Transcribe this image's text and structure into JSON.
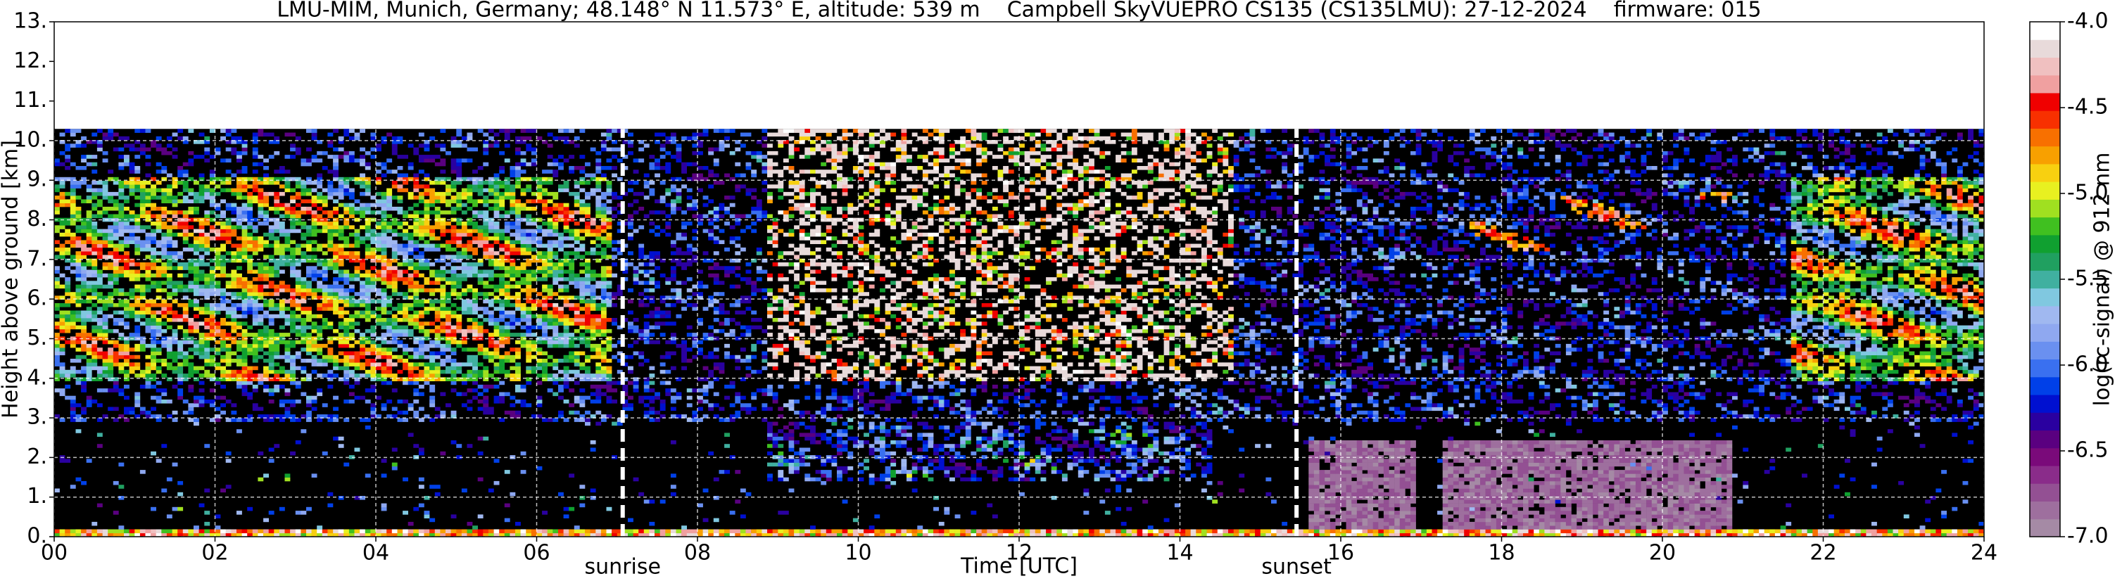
{
  "chart_data": {
    "type": "heatmap",
    "title": "LMU-MIM, Munich, Germany; 48.148° N 11.573° E, altitude: 539 m    Campbell SkyVUEPRO CS135 (CS135LMU): 27-12-2024    firmware: 015",
    "x_label": "Time [UTC]",
    "y_label": "Height above ground [km]",
    "xlim": [
      0,
      24
    ],
    "xticks": [
      {
        "value": 0,
        "label": "00"
      },
      {
        "value": 2,
        "label": "02"
      },
      {
        "value": 4,
        "label": "04"
      },
      {
        "value": 6,
        "label": "06"
      },
      {
        "value": 8,
        "label": "08"
      },
      {
        "value": 10,
        "label": "10"
      },
      {
        "value": 12,
        "label": "12"
      },
      {
        "value": 14,
        "label": "14"
      },
      {
        "value": 16,
        "label": "16"
      },
      {
        "value": 18,
        "label": "18"
      },
      {
        "value": 20,
        "label": "20"
      },
      {
        "value": 22,
        "label": "22"
      },
      {
        "value": 24,
        "label": "24"
      }
    ],
    "ylim": [
      0,
      13
    ],
    "yticks": [
      {
        "value": 0,
        "label": "0."
      },
      {
        "value": 1,
        "label": "1."
      },
      {
        "value": 2,
        "label": "2."
      },
      {
        "value": 3,
        "label": "3."
      },
      {
        "value": 4,
        "label": "4."
      },
      {
        "value": 5,
        "label": "5."
      },
      {
        "value": 6,
        "label": "6."
      },
      {
        "value": 7,
        "label": "7."
      },
      {
        "value": 8,
        "label": "8."
      },
      {
        "value": 9,
        "label": "9."
      },
      {
        "value": 10,
        "label": "10."
      },
      {
        "value": 11,
        "label": "11."
      },
      {
        "value": 12,
        "label": "12."
      },
      {
        "value": 13,
        "label": "13."
      }
    ],
    "grid": true,
    "annotations": [
      {
        "text": "sunrise",
        "x": 7.07
      },
      {
        "text": "sunset",
        "x": 15.45
      }
    ],
    "colorbar": {
      "label": "log(rc-signal) @ 912 nm",
      "lim": [
        -7,
        -4
      ],
      "ticks": [
        {
          "value": -4,
          "label": "-4.0"
        },
        {
          "value": -4.5,
          "label": "-4.5"
        },
        {
          "value": -5,
          "label": "-5.0"
        },
        {
          "value": -5.5,
          "label": "-5.5"
        },
        {
          "value": -6,
          "label": "-6.0"
        },
        {
          "value": -6.5,
          "label": "-6.5"
        },
        {
          "value": -7,
          "label": "-7.0"
        }
      ],
      "colors": [
        "#a58aa5",
        "#9e6f9e",
        "#935093",
        "#8a2c8a",
        "#7a0a7a",
        "#5a0080",
        "#2a00a0",
        "#0010d0",
        "#0040e8",
        "#3a70f0",
        "#6a90f0",
        "#8fa8f0",
        "#a0b8f0",
        "#80c8e0",
        "#40b0a0",
        "#20a060",
        "#10a030",
        "#40c020",
        "#a0e020",
        "#e8f020",
        "#f8d010",
        "#f8a000",
        "#f87000",
        "#f83000",
        "#f00000",
        "#f0a0a0",
        "#f0c0c0",
        "#e8dada",
        "#ffffff"
      ]
    }
  }
}
